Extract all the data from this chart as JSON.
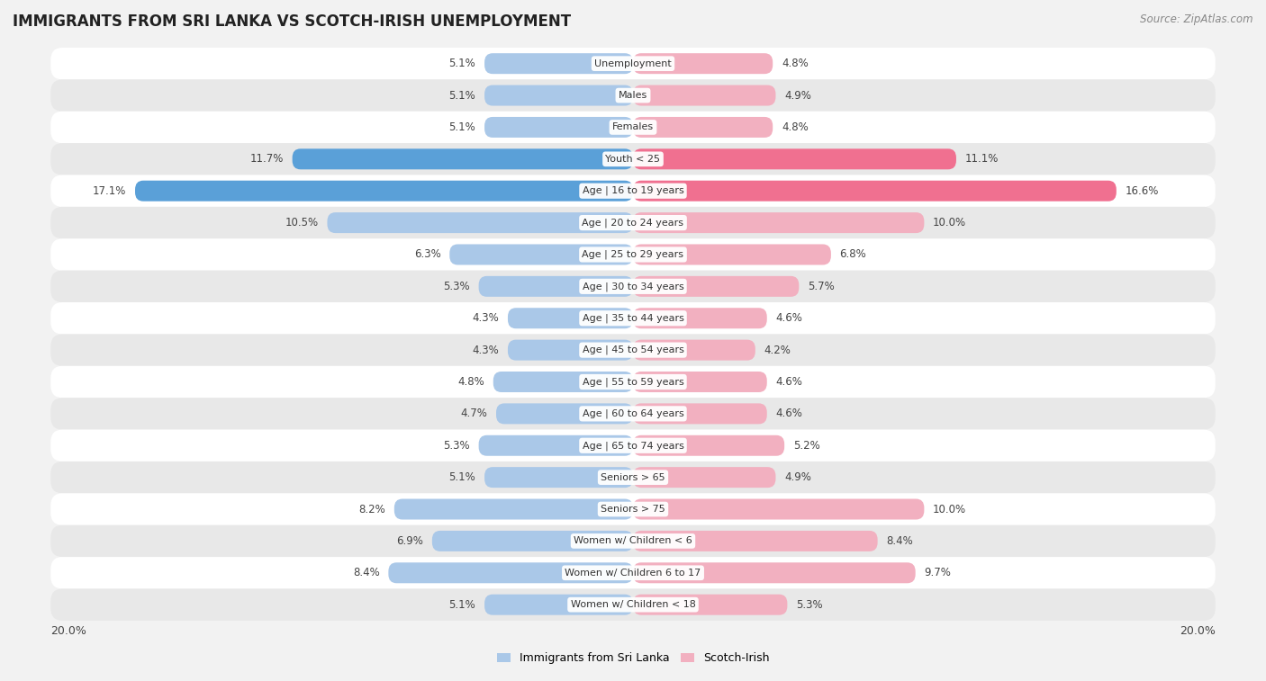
{
  "title": "IMMIGRANTS FROM SRI LANKA VS SCOTCH-IRISH UNEMPLOYMENT",
  "source": "Source: ZipAtlas.com",
  "categories": [
    "Unemployment",
    "Males",
    "Females",
    "Youth < 25",
    "Age | 16 to 19 years",
    "Age | 20 to 24 years",
    "Age | 25 to 29 years",
    "Age | 30 to 34 years",
    "Age | 35 to 44 years",
    "Age | 45 to 54 years",
    "Age | 55 to 59 years",
    "Age | 60 to 64 years",
    "Age | 65 to 74 years",
    "Seniors > 65",
    "Seniors > 75",
    "Women w/ Children < 6",
    "Women w/ Children 6 to 17",
    "Women w/ Children < 18"
  ],
  "sri_lanka": [
    5.1,
    5.1,
    5.1,
    11.7,
    17.1,
    10.5,
    6.3,
    5.3,
    4.3,
    4.3,
    4.8,
    4.7,
    5.3,
    5.1,
    8.2,
    6.9,
    8.4,
    5.1
  ],
  "scotch_irish": [
    4.8,
    4.9,
    4.8,
    11.1,
    16.6,
    10.0,
    6.8,
    5.7,
    4.6,
    4.2,
    4.6,
    4.6,
    5.2,
    4.9,
    10.0,
    8.4,
    9.7,
    5.3
  ],
  "sri_lanka_color": "#aac8e8",
  "scotch_irish_color": "#f2b0c0",
  "sri_lanka_highlight_color": "#5aa0d8",
  "scotch_irish_highlight_color": "#f07090",
  "background_color": "#f2f2f2",
  "row_color_light": "#ffffff",
  "row_color_dark": "#e8e8e8",
  "max_value": 20.0,
  "legend_sri_lanka": "Immigrants from Sri Lanka",
  "legend_scotch_irish": "Scotch-Irish"
}
